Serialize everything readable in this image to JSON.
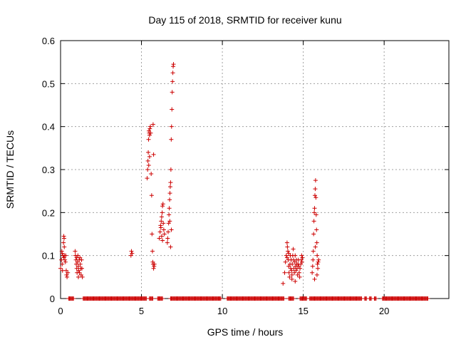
{
  "chart_data": {
    "type": "scatter",
    "title": "Day 115 of 2018, SRMTID for receiver kunu",
    "xlabel": "GPS time / hours",
    "ylabel": "SRMTID / TECUs",
    "xlim": [
      0,
      24
    ],
    "ylim": [
      0,
      0.6
    ],
    "x_ticks": [
      0,
      5,
      10,
      15,
      20
    ],
    "y_ticks": [
      0,
      0.1,
      0.2,
      0.3,
      0.4,
      0.5,
      0.6
    ],
    "x_tick_labels": [
      "0",
      "5",
      "10",
      "15",
      "20"
    ],
    "y_tick_labels": [
      "0",
      "0.1",
      "0.2",
      "0.3",
      "0.4",
      "0.5",
      "0.6"
    ],
    "grid": true,
    "legend": "none",
    "marker": "plus",
    "marker_color": "#cc0000",
    "grid_color": "#a0a0a0",
    "zero_runs": [
      [
        0.5,
        0.8
      ],
      [
        1.4,
        5.3
      ],
      [
        5.5,
        5.7
      ],
      [
        6.0,
        6.3
      ],
      [
        6.8,
        9.9
      ],
      [
        10.3,
        13.8
      ],
      [
        14.1,
        14.4
      ],
      [
        14.8,
        15.2
      ],
      [
        15.4,
        18.6
      ],
      [
        18.8,
        18.9
      ],
      [
        19.1,
        19.2
      ],
      [
        19.4,
        19.5
      ],
      [
        19.9,
        22.7
      ]
    ],
    "points": [
      [
        0.0,
        0.07
      ],
      [
        0.05,
        0.09
      ],
      [
        0.08,
        0.11
      ],
      [
        0.1,
        0.08
      ],
      [
        0.12,
        0.065
      ],
      [
        0.15,
        0.1
      ],
      [
        0.18,
        0.13
      ],
      [
        0.2,
        0.145
      ],
      [
        0.22,
        0.14
      ],
      [
        0.23,
        0.12
      ],
      [
        0.25,
        0.1
      ],
      [
        0.27,
        0.09
      ],
      [
        0.3,
        0.085
      ],
      [
        0.32,
        0.1
      ],
      [
        0.35,
        0.065
      ],
      [
        0.37,
        0.055
      ],
      [
        0.4,
        0.05
      ],
      [
        0.45,
        0.06
      ],
      [
        0.2,
        0.095
      ],
      [
        0.1,
        0.105
      ],
      [
        0.9,
        0.11
      ],
      [
        0.92,
        0.1
      ],
      [
        0.95,
        0.09
      ],
      [
        0.97,
        0.08
      ],
      [
        1.0,
        0.07
      ],
      [
        1.02,
        0.06
      ],
      [
        1.05,
        0.085
      ],
      [
        1.07,
        0.1
      ],
      [
        1.1,
        0.075
      ],
      [
        1.12,
        0.065
      ],
      [
        1.15,
        0.09
      ],
      [
        1.17,
        0.06
      ],
      [
        1.2,
        0.095
      ],
      [
        1.22,
        0.08
      ],
      [
        1.25,
        0.07
      ],
      [
        1.27,
        0.055
      ],
      [
        1.3,
        0.09
      ],
      [
        1.32,
        0.07
      ],
      [
        1.35,
        0.05
      ],
      [
        1.0,
        0.095
      ],
      [
        1.1,
        0.05
      ],
      [
        4.35,
        0.1
      ],
      [
        4.38,
        0.11
      ],
      [
        4.42,
        0.105
      ],
      [
        5.35,
        0.28
      ],
      [
        5.38,
        0.3
      ],
      [
        5.4,
        0.32
      ],
      [
        5.42,
        0.34
      ],
      [
        5.44,
        0.37
      ],
      [
        5.46,
        0.39
      ],
      [
        5.48,
        0.385
      ],
      [
        5.5,
        0.38
      ],
      [
        5.52,
        0.395
      ],
      [
        5.55,
        0.4
      ],
      [
        5.57,
        0.385
      ],
      [
        5.6,
        0.29
      ],
      [
        5.63,
        0.24
      ],
      [
        5.65,
        0.15
      ],
      [
        5.68,
        0.11
      ],
      [
        5.7,
        0.085
      ],
      [
        5.72,
        0.08
      ],
      [
        5.75,
        0.07
      ],
      [
        5.78,
        0.075
      ],
      [
        5.8,
        0.08
      ],
      [
        5.75,
        0.335
      ],
      [
        5.72,
        0.405
      ],
      [
        5.5,
        0.33
      ],
      [
        5.45,
        0.31
      ],
      [
        6.1,
        0.14
      ],
      [
        6.15,
        0.155
      ],
      [
        6.18,
        0.17
      ],
      [
        6.2,
        0.165
      ],
      [
        6.22,
        0.18
      ],
      [
        6.25,
        0.19
      ],
      [
        6.28,
        0.2
      ],
      [
        6.3,
        0.215
      ],
      [
        6.33,
        0.22
      ],
      [
        6.35,
        0.175
      ],
      [
        6.38,
        0.16
      ],
      [
        6.42,
        0.15
      ],
      [
        6.25,
        0.145
      ],
      [
        6.3,
        0.135
      ],
      [
        6.6,
        0.13
      ],
      [
        6.62,
        0.14
      ],
      [
        6.65,
        0.155
      ],
      [
        6.68,
        0.175
      ],
      [
        6.7,
        0.195
      ],
      [
        6.72,
        0.21
      ],
      [
        6.74,
        0.23
      ],
      [
        6.76,
        0.245
      ],
      [
        6.78,
        0.26
      ],
      [
        6.8,
        0.27
      ],
      [
        6.82,
        0.3
      ],
      [
        6.84,
        0.37
      ],
      [
        6.86,
        0.4
      ],
      [
        6.88,
        0.44
      ],
      [
        6.9,
        0.48
      ],
      [
        6.92,
        0.505
      ],
      [
        6.94,
        0.525
      ],
      [
        6.96,
        0.54
      ],
      [
        6.98,
        0.545
      ],
      [
        6.75,
        0.18
      ],
      [
        6.8,
        0.12
      ],
      [
        6.85,
        0.16
      ],
      [
        13.75,
        0.035
      ],
      [
        13.85,
        0.06
      ],
      [
        13.9,
        0.085
      ],
      [
        13.95,
        0.1
      ],
      [
        14.0,
        0.13
      ],
      [
        14.02,
        0.12
      ],
      [
        14.05,
        0.11
      ],
      [
        14.08,
        0.09
      ],
      [
        14.1,
        0.075
      ],
      [
        14.12,
        0.06
      ],
      [
        14.15,
        0.05
      ],
      [
        14.18,
        0.08
      ],
      [
        14.2,
        0.1
      ],
      [
        14.22,
        0.07
      ],
      [
        14.25,
        0.09
      ],
      [
        14.28,
        0.065
      ],
      [
        14.3,
        0.055
      ],
      [
        14.32,
        0.08
      ],
      [
        14.35,
        0.1
      ],
      [
        14.38,
        0.115
      ],
      [
        14.4,
        0.09
      ],
      [
        14.42,
        0.07
      ],
      [
        14.45,
        0.06
      ],
      [
        14.48,
        0.085
      ],
      [
        14.5,
        0.1
      ],
      [
        14.52,
        0.075
      ],
      [
        14.55,
        0.065
      ],
      [
        14.58,
        0.09
      ],
      [
        14.6,
        0.08
      ],
      [
        14.62,
        0.07
      ],
      [
        14.65,
        0.055
      ],
      [
        14.68,
        0.08
      ],
      [
        14.7,
        0.09
      ],
      [
        14.72,
        0.075
      ],
      [
        14.75,
        0.06
      ],
      [
        14.78,
        0.05
      ],
      [
        14.8,
        0.07
      ],
      [
        14.0,
        0.095
      ],
      [
        14.1,
        0.105
      ],
      [
        14.3,
        0.045
      ],
      [
        14.5,
        0.04
      ],
      [
        14.85,
        0.08
      ],
      [
        14.88,
        0.09
      ],
      [
        14.9,
        0.1
      ],
      [
        14.92,
        0.085
      ],
      [
        14.95,
        0.095
      ],
      [
        15.55,
        0.06
      ],
      [
        15.58,
        0.075
      ],
      [
        15.6,
        0.09
      ],
      [
        15.62,
        0.11
      ],
      [
        15.64,
        0.15
      ],
      [
        15.66,
        0.18
      ],
      [
        15.68,
        0.2
      ],
      [
        15.7,
        0.21
      ],
      [
        15.72,
        0.24
      ],
      [
        15.74,
        0.255
      ],
      [
        15.76,
        0.275
      ],
      [
        15.78,
        0.235
      ],
      [
        15.8,
        0.195
      ],
      [
        15.82,
        0.16
      ],
      [
        15.84,
        0.13
      ],
      [
        15.86,
        0.1
      ],
      [
        15.88,
        0.08
      ],
      [
        15.9,
        0.07
      ],
      [
        15.92,
        0.085
      ],
      [
        15.95,
        0.09
      ],
      [
        15.7,
        0.045
      ],
      [
        15.85,
        0.055
      ],
      [
        15.75,
        0.12
      ]
    ]
  }
}
